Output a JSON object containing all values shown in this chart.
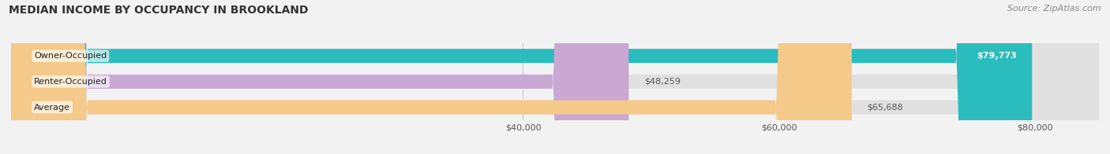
{
  "title": "MEDIAN INCOME BY OCCUPANCY IN BROOKLAND",
  "source": "Source: ZipAtlas.com",
  "categories": [
    "Owner-Occupied",
    "Renter-Occupied",
    "Average"
  ],
  "values": [
    79773,
    48259,
    65688
  ],
  "bar_colors": [
    "#2bbcbe",
    "#c9a8d4",
    "#f5c98a"
  ],
  "value_labels": [
    "$79,773",
    "$48,259",
    "$65,688"
  ],
  "value_label_inside": [
    true,
    false,
    false
  ],
  "xlim": [
    0,
    85000
  ],
  "xticks": [
    40000,
    60000,
    80000
  ],
  "xtick_labels": [
    "$40,000",
    "$60,000",
    "$80,000"
  ],
  "title_fontsize": 10,
  "source_fontsize": 8,
  "bar_label_fontsize": 8,
  "value_label_fontsize": 8,
  "background_color": "#f2f2f2",
  "bar_bg_color": "#e0e0e0"
}
